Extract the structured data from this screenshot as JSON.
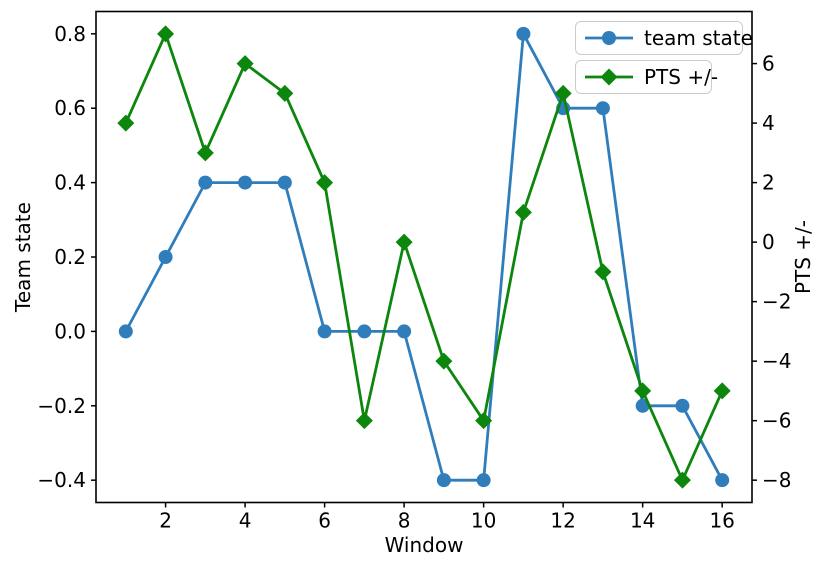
{
  "chart_data": {
    "type": "line",
    "title": "",
    "xlabel": "Window",
    "ylabel_left": "Team state",
    "ylabel_right": "PTS +/-",
    "x": [
      1,
      2,
      3,
      4,
      5,
      6,
      7,
      8,
      9,
      10,
      11,
      12,
      13,
      14,
      15,
      16
    ],
    "series": [
      {
        "name": "team state",
        "yaxis": "left",
        "color": "#2f7dbb",
        "marker": "circle",
        "values": [
          0.0,
          0.2,
          0.4,
          0.4,
          0.4,
          0.0,
          0.0,
          0.0,
          -0.4,
          -0.4,
          0.8,
          0.6,
          0.6,
          -0.2,
          -0.2,
          -0.4
        ]
      },
      {
        "name": "PTS +/-",
        "yaxis": "right",
        "color": "#0c860c",
        "marker": "diamond",
        "values": [
          4,
          7,
          3,
          6,
          5,
          2,
          -6,
          0,
          -4,
          -6,
          1,
          5,
          -1,
          -5,
          -8,
          -5
        ]
      }
    ],
    "axes": {
      "x": {
        "ticks": [
          2,
          4,
          6,
          8,
          10,
          12,
          14,
          16
        ],
        "lim": [
          0.25,
          16.75
        ]
      },
      "left": {
        "ticks": [
          0.8,
          0.6,
          0.4,
          0.2,
          0.0,
          -0.2,
          -0.4
        ],
        "lim": [
          -0.46,
          0.86
        ]
      },
      "right": {
        "ticks": [
          6,
          4,
          2,
          0,
          -2,
          -4,
          -6,
          -8
        ],
        "lim": [
          -8.75,
          7.75
        ]
      }
    },
    "legend": {
      "position": "upper-right",
      "entries": [
        "team state",
        "PTS +/-"
      ]
    },
    "grid": false,
    "frame_color": "#000000",
    "text_color": "#000000"
  }
}
